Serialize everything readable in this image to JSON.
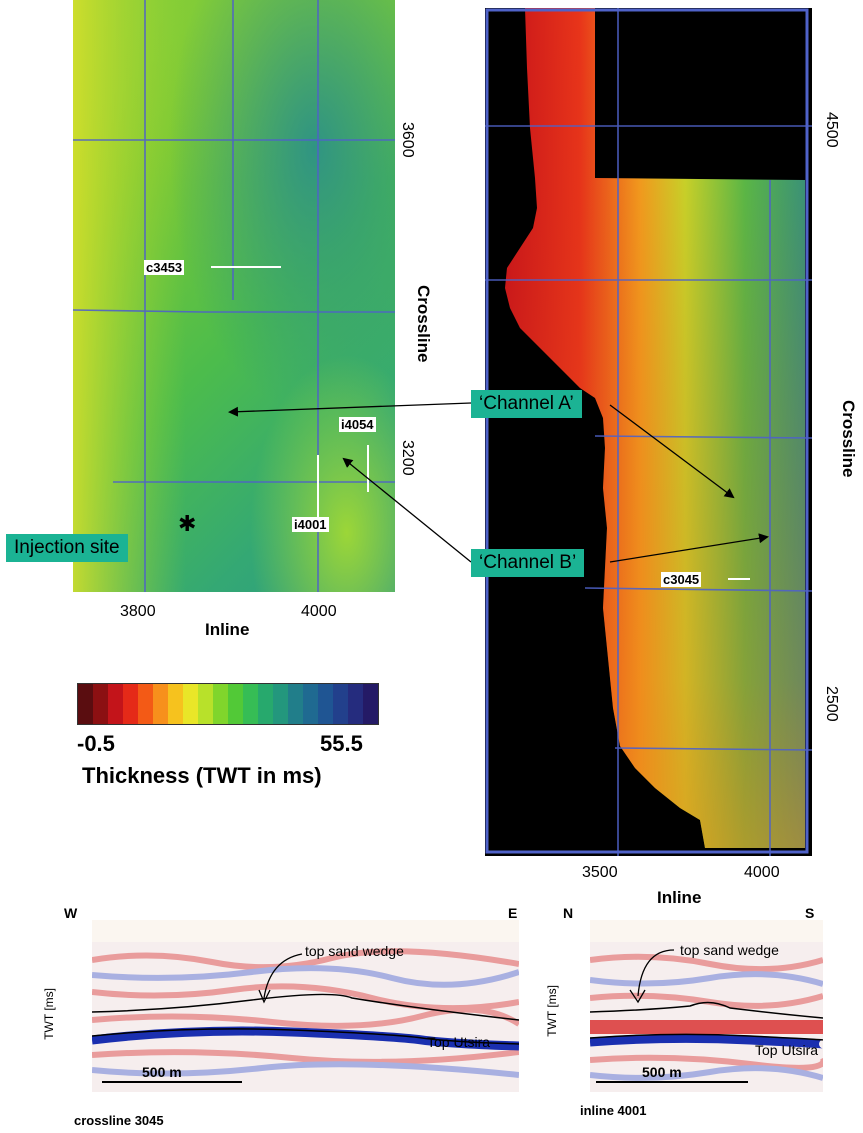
{
  "left_map": {
    "y_ticks": [
      "3600",
      "3200"
    ],
    "x_ticks": [
      "3800",
      "4000"
    ],
    "x_label": "Inline",
    "y_label": "Crossline",
    "line_labels": {
      "c3453": "c3453",
      "i4054": "i4054",
      "i4001": "i4001"
    },
    "injection_site": "Injection site"
  },
  "right_map": {
    "y_ticks": [
      "4500",
      "2500"
    ],
    "x_ticks": [
      "3500",
      "4000"
    ],
    "x_label": "Inline",
    "y_label": "Crossline",
    "line_labels": {
      "c3045": "c3045"
    }
  },
  "channels": {
    "a": "‘Channel A’",
    "b": "‘Channel B’"
  },
  "colorbar": {
    "min": "-0.5",
    "max": "55.5",
    "label": "Thickness (TWT in ms)",
    "colors": [
      "#5a0d10",
      "#8c1012",
      "#c3141a",
      "#e52a18",
      "#f35a16",
      "#f7901c",
      "#f6c21e",
      "#e9e628",
      "#b8e12a",
      "#80d52c",
      "#52c937",
      "#36bd55",
      "#27a96d",
      "#23977d",
      "#217e8a",
      "#1f6a91",
      "#1f5593",
      "#22408c",
      "#252c7e",
      "#241a66"
    ]
  },
  "section_w": {
    "left_end": "W",
    "right_end": "E",
    "y_axis": "TWT [ms]",
    "horizon_top_sand": "top sand wedge",
    "horizon_utsira": "Top Utsira",
    "scale": "500 m",
    "caption": "crossline 3045"
  },
  "section_n": {
    "left_end": "N",
    "right_end": "S",
    "y_axis": "TWT [ms]",
    "horizon_top_sand": "top sand wedge",
    "horizon_utsira": "Top Utsira",
    "scale": "500 m",
    "caption": "inline 4001"
  }
}
